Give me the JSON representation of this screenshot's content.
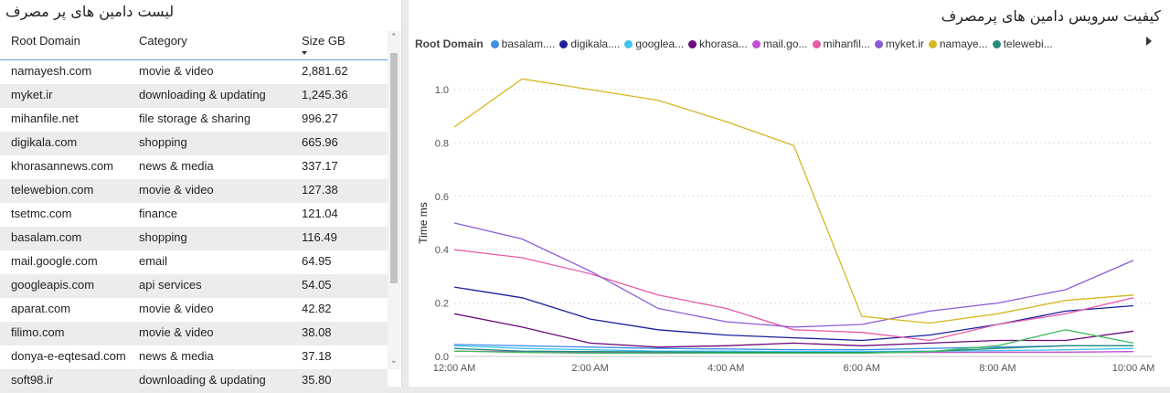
{
  "table_panel": {
    "title": "لیست دامین های پر مصرف",
    "columns": [
      "Root Domain",
      "Category",
      "Size GB"
    ],
    "rows": [
      [
        "namayesh.com",
        "movie & video",
        "2,881.62"
      ],
      [
        "myket.ir",
        "downloading & updating",
        "1,245.36"
      ],
      [
        "mihanfile.net",
        "file storage & sharing",
        "996.27"
      ],
      [
        "digikala.com",
        "shopping",
        "665.96"
      ],
      [
        "khorasannews.com",
        "news & media",
        "337.17"
      ],
      [
        "telewebion.com",
        "movie & video",
        "127.38"
      ],
      [
        "tsetmc.com",
        "finance",
        "121.04"
      ],
      [
        "basalam.com",
        "shopping",
        "116.49"
      ],
      [
        "mail.google.com",
        "email",
        "64.95"
      ],
      [
        "googleapis.com",
        "api services",
        "54.05"
      ],
      [
        "aparat.com",
        "movie & video",
        "42.82"
      ],
      [
        "filimo.com",
        "movie & video",
        "38.08"
      ],
      [
        "donya-e-eqtesad.com",
        "news & media",
        "37.18"
      ],
      [
        "soft98.ir",
        "downloading & updating",
        "35.80"
      ]
    ]
  },
  "chart_panel": {
    "title": "کیفیت سرویس دامین های پرمصرف",
    "legend_title": "Root Domain"
  },
  "chart_data": {
    "type": "line",
    "ylabel": "Time ms",
    "xlabel": "",
    "x": [
      "12:00 AM",
      "1:00 AM",
      "2:00 AM",
      "3:00 AM",
      "4:00 AM",
      "5:00 AM",
      "6:00 AM",
      "7:00 AM",
      "8:00 AM",
      "9:00 AM",
      "10:00 AM"
    ],
    "x_ticks": [
      "12:00 AM",
      "2:00 AM",
      "4:00 AM",
      "6:00 AM",
      "8:00 AM",
      "10:00 AM"
    ],
    "y_ticks": [
      "0.0",
      "0.2",
      "0.4",
      "0.6",
      "0.8",
      "1.0"
    ],
    "ylim": [
      0,
      1.0
    ],
    "grid": true,
    "legend_position": "top",
    "series": [
      {
        "name": "basalam....",
        "color": "#3f8fe6",
        "values": [
          0.045,
          0.04,
          0.035,
          0.03,
          0.028,
          0.025,
          0.025,
          0.03,
          0.035,
          0.04,
          0.04
        ]
      },
      {
        "name": "digikala....",
        "color": "#1a1f9c",
        "values": [
          0.26,
          0.22,
          0.14,
          0.1,
          0.08,
          0.07,
          0.06,
          0.08,
          0.12,
          0.17,
          0.19
        ]
      },
      {
        "name": "googlea...",
        "color": "#3ec3f0",
        "values": [
          0.04,
          0.03,
          0.025,
          0.02,
          0.02,
          0.018,
          0.018,
          0.02,
          0.022,
          0.025,
          0.03
        ]
      },
      {
        "name": "khorasa...",
        "color": "#6b0a7a",
        "values": [
          0.16,
          0.11,
          0.05,
          0.035,
          0.04,
          0.05,
          0.04,
          0.05,
          0.06,
          0.06,
          0.095
        ]
      },
      {
        "name": "mail.go...",
        "color": "#c44fd6",
        "values": [
          0.02,
          0.018,
          0.015,
          0.015,
          0.015,
          0.014,
          0.014,
          0.015,
          0.016,
          0.016,
          0.018
        ]
      },
      {
        "name": "mihanfil...",
        "color": "#e85aa8",
        "values": [
          0.4,
          0.37,
          0.31,
          0.23,
          0.18,
          0.1,
          0.09,
          0.06,
          0.12,
          0.16,
          0.22
        ]
      },
      {
        "name": "myket.ir",
        "color": "#8e5bd6",
        "values": [
          0.5,
          0.44,
          0.32,
          0.18,
          0.13,
          0.11,
          0.12,
          0.17,
          0.2,
          0.25,
          0.36
        ]
      },
      {
        "name": "namaye...",
        "color": "#d4b821",
        "values": [
          0.86,
          1.04,
          1.0,
          0.96,
          0.88,
          0.79,
          0.15,
          0.125,
          0.16,
          0.21,
          0.23
        ]
      },
      {
        "name": "telewebi...",
        "color": "#268c7e",
        "values": [
          0.03,
          0.02,
          0.018,
          0.017,
          0.016,
          0.015,
          0.015,
          0.018,
          0.03,
          0.04,
          0.04
        ]
      },
      {
        "name": "",
        "color": "#3fbf5a",
        "values": [
          0.02,
          0.015,
          0.012,
          0.012,
          0.012,
          0.012,
          0.012,
          0.018,
          0.04,
          0.1,
          0.05
        ]
      }
    ]
  }
}
